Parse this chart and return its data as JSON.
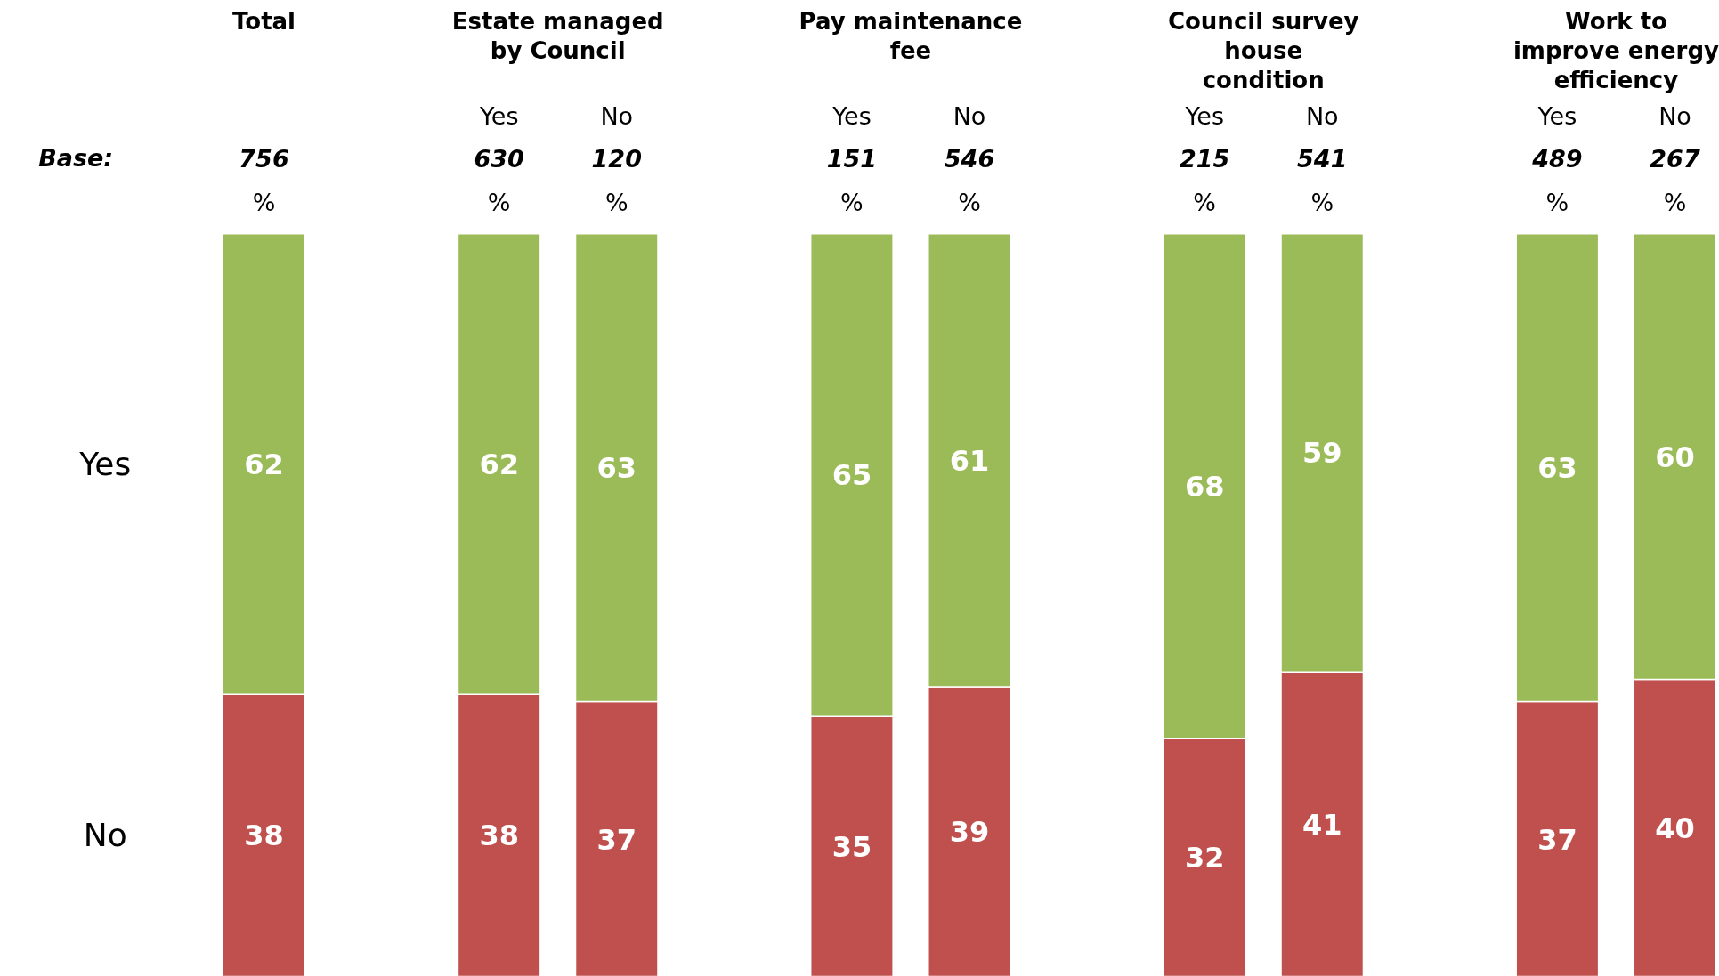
{
  "chart_data": {
    "type": "bar",
    "stacked": true,
    "data_labels": true,
    "legend": "left",
    "categories": [
      null,
      "Yes",
      "No",
      "Yes",
      "No",
      "Yes",
      "No",
      "Yes",
      "No"
    ],
    "series": [
      {
        "name": "No",
        "color": "#c0504d",
        "values": [
          38,
          38,
          37,
          35,
          39,
          32,
          41,
          37,
          40
        ]
      },
      {
        "name": "Yes",
        "color": "#9bbb59",
        "values": [
          62,
          62,
          63,
          65,
          61,
          68,
          59,
          63,
          60
        ]
      }
    ],
    "annotations": [
      "Total",
      "Estate managed\nby Council",
      "Pay maintenance\nfee",
      "Council survey\nhouse\ncondition",
      "Work to\nimprove energy\nefficiency",
      "Base:",
      "756",
      "630",
      "120",
      "151",
      "546",
      "215",
      "541",
      "489",
      "267",
      "%",
      "%",
      "%",
      "%",
      "%",
      "%",
      "%",
      "%",
      "%"
    ]
  }
}
